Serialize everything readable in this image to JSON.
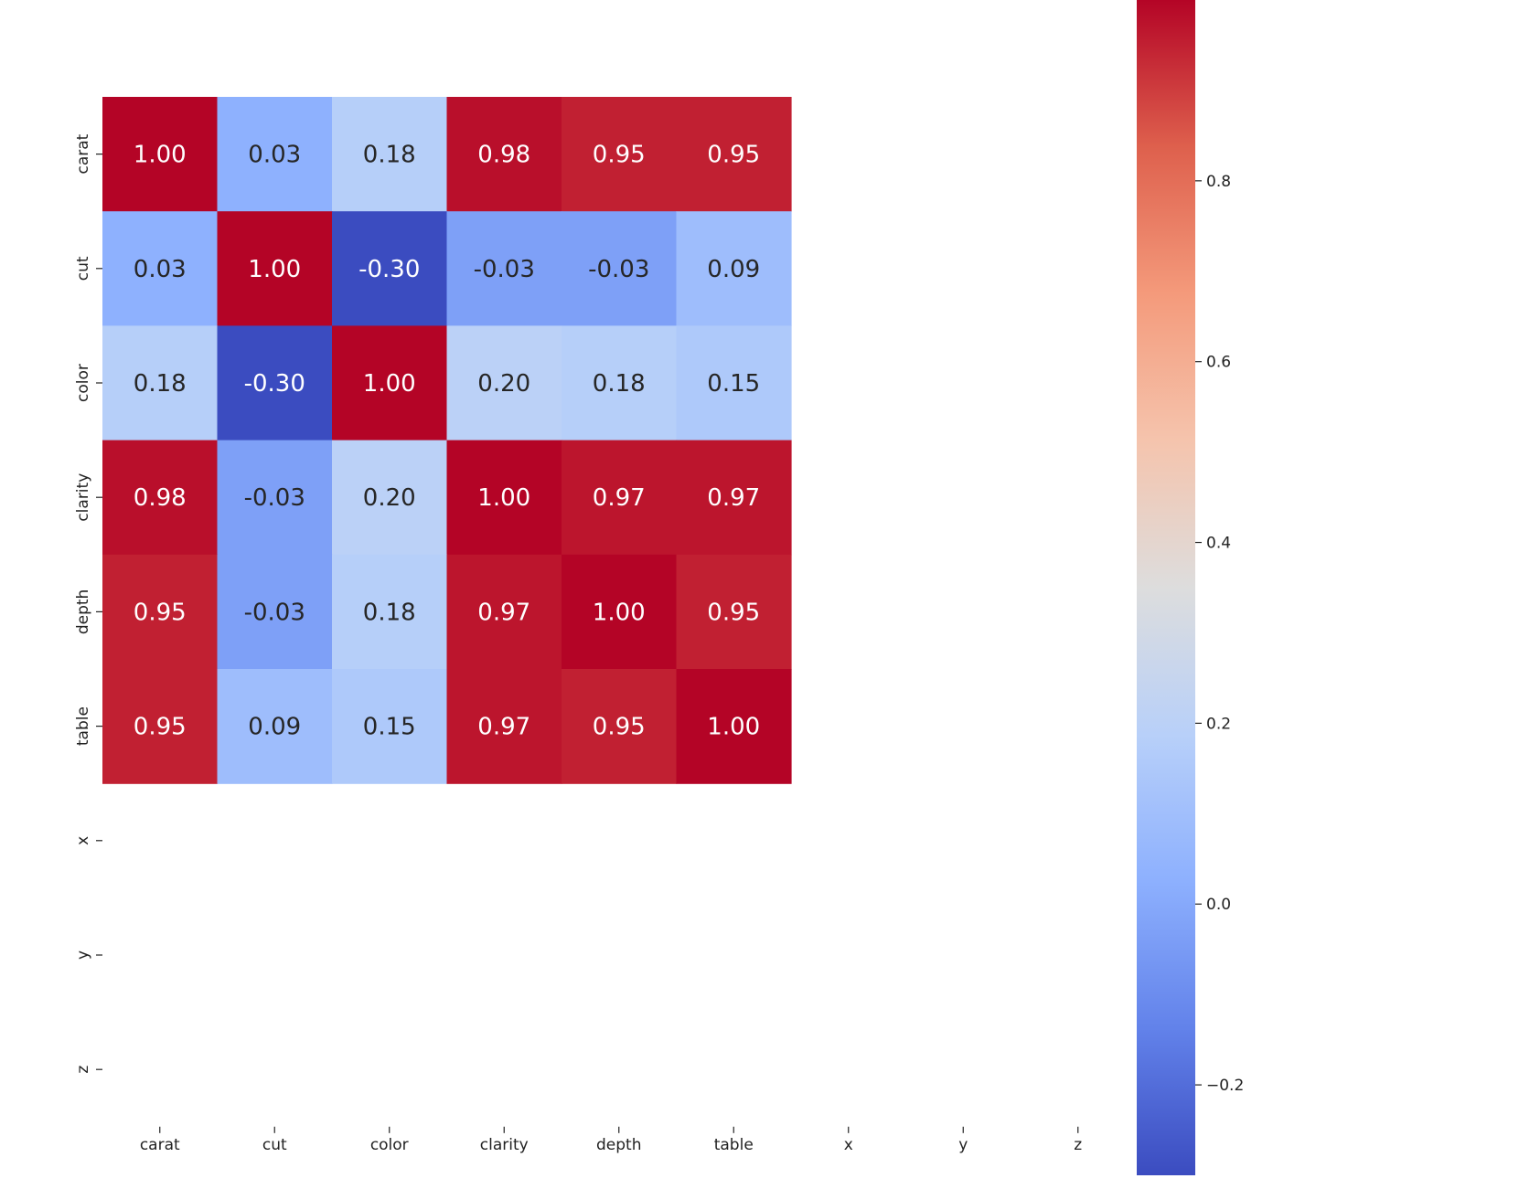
{
  "chart_data": {
    "type": "heatmap",
    "title": "",
    "xlabel": "",
    "ylabel": "",
    "x_labels": [
      "carat",
      "cut",
      "color",
      "clarity",
      "depth",
      "table",
      "x",
      "y",
      "z"
    ],
    "y_labels": [
      "carat",
      "cut",
      "color",
      "clarity",
      "depth",
      "table",
      "x",
      "y",
      "z"
    ],
    "cell_values": [
      [
        1.0,
        0.03,
        0.18,
        0.98,
        0.95,
        0.95,
        null,
        null,
        null
      ],
      [
        0.03,
        1.0,
        -0.3,
        -0.03,
        -0.03,
        0.09,
        null,
        null,
        null
      ],
      [
        0.18,
        -0.3,
        1.0,
        0.2,
        0.18,
        0.15,
        null,
        null,
        null
      ],
      [
        0.98,
        -0.03,
        0.2,
        1.0,
        0.97,
        0.97,
        null,
        null,
        null
      ],
      [
        0.95,
        -0.03,
        0.18,
        0.97,
        1.0,
        0.95,
        null,
        null,
        null
      ],
      [
        0.95,
        0.09,
        0.15,
        0.97,
        0.95,
        1.0,
        null,
        null,
        null
      ],
      [
        null,
        null,
        null,
        null,
        null,
        null,
        null,
        null,
        null
      ],
      [
        null,
        null,
        null,
        null,
        null,
        null,
        null,
        null,
        null
      ],
      [
        null,
        null,
        null,
        null,
        null,
        null,
        null,
        null,
        null
      ]
    ],
    "annotations": [
      [
        "1.00",
        "0.03",
        "0.18",
        "0.98",
        "0.95",
        "0.95"
      ],
      [
        "0.03",
        "1.00",
        "-0.30",
        "-0.03",
        "-0.03",
        "0.09"
      ],
      [
        "0.18",
        "-0.30",
        "1.00",
        "0.20",
        "0.18",
        "0.15"
      ],
      [
        "0.98",
        "-0.03",
        "0.20",
        "1.00",
        "0.97",
        "0.97"
      ],
      [
        "0.95",
        "-0.03",
        "0.18",
        "0.97",
        "1.00",
        "0.95"
      ],
      [
        "0.95",
        "0.09",
        "0.15",
        "0.97",
        "0.95",
        "1.00"
      ]
    ],
    "colormap": "coolwarm",
    "vmin": -0.3,
    "vmax": 1.0,
    "colorbar": {
      "ticks": [
        -0.2,
        0.0,
        0.2,
        0.4,
        0.6,
        0.8
      ],
      "tick_labels": [
        "−0.2",
        "0.0",
        "0.2",
        "0.4",
        "0.6",
        "0.8"
      ]
    },
    "colors": {
      "cold": "#3b4cc0",
      "neutral": "#dddddd",
      "hot": "#b40426"
    }
  }
}
